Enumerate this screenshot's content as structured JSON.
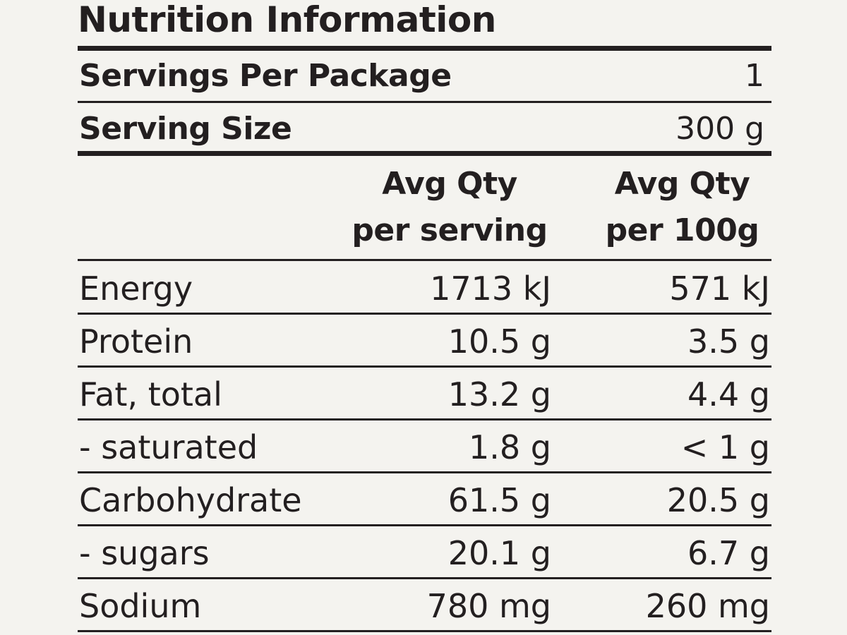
{
  "title": "Nutrition Information",
  "servings_per_package": {
    "label": "Servings Per Package",
    "value": "1"
  },
  "serving_size": {
    "label": "Serving Size",
    "value": "300 g"
  },
  "columns": {
    "per_serving_line1": "Avg Qty",
    "per_serving_line2": "per serving",
    "per_100g_line1": "Avg Qty",
    "per_100g_line2": "per 100g"
  },
  "rows": [
    {
      "label": "Energy",
      "per_serving": "1713 kJ",
      "per_100g": "571 kJ"
    },
    {
      "label": "Protein",
      "per_serving": "10.5 g",
      "per_100g": "3.5 g"
    },
    {
      "label": "Fat, total",
      "per_serving": "13.2 g",
      "per_100g": "4.4 g"
    },
    {
      "label": "- saturated",
      "per_serving": "1.8 g",
      "per_100g": "< 1 g"
    },
    {
      "label": "Carbohydrate",
      "per_serving": "61.5 g",
      "per_100g": "20.5 g"
    },
    {
      "label": "- sugars",
      "per_serving": "20.1 g",
      "per_100g": "6.7 g"
    },
    {
      "label": "Sodium",
      "per_serving": "780 mg",
      "per_100g": "260 mg"
    }
  ]
}
